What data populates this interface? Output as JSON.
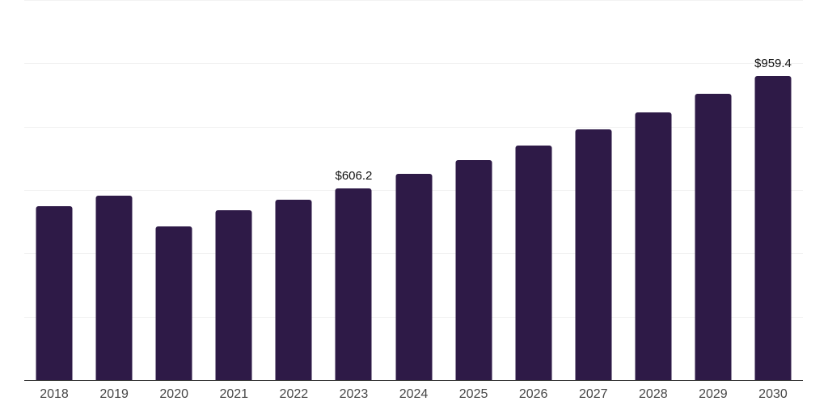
{
  "chart_data": {
    "type": "bar",
    "title": "",
    "xlabel": "",
    "ylabel": "",
    "categories": [
      "2018",
      "2019",
      "2020",
      "2021",
      "2022",
      "2023",
      "2024",
      "2025",
      "2026",
      "2027",
      "2028",
      "2029",
      "2030"
    ],
    "values": [
      548,
      582,
      484,
      536,
      570,
      606.2,
      651,
      694,
      741,
      792,
      846,
      905,
      959.4
    ],
    "value_labels": [
      "",
      "",
      "",
      "",
      "",
      "$606.2",
      "",
      "",
      "",
      "",
      "",
      "",
      "$959.4"
    ],
    "ylim": [
      0,
      1200
    ],
    "gridline_values": [
      200,
      400,
      600,
      800,
      1000,
      1200
    ],
    "grid": "horizontal-only",
    "legend_position": "none",
    "colors": {
      "bar": "#2e1a47",
      "gridline": "#f2f2f2",
      "axis_line": "#2b2b2b",
      "tick_label": "#474747",
      "value_label": "#111111",
      "background": "#ffffff"
    }
  }
}
